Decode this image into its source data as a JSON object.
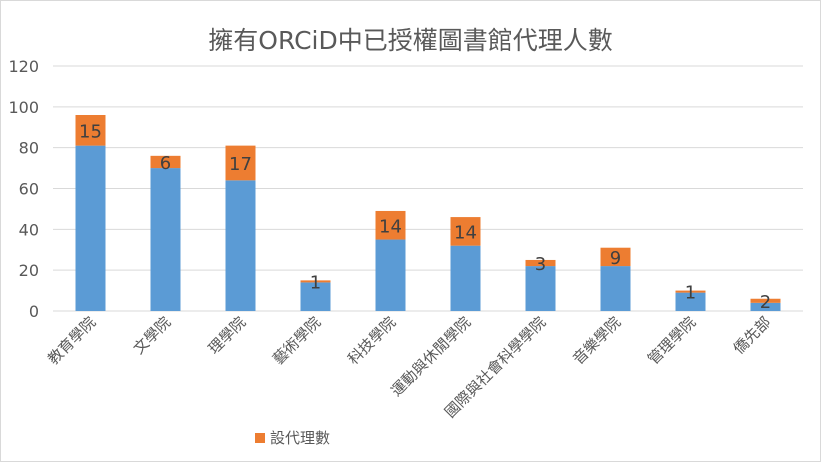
{
  "chart_data": {
    "type": "bar",
    "stacked": true,
    "title": "擁有ORCiD中已授權圖書館代理人數",
    "xlabel": "",
    "ylabel": "",
    "ylim": [
      0,
      120
    ],
    "yticks": [
      0,
      20,
      40,
      60,
      80,
      100,
      120
    ],
    "grid": true,
    "legend_position": "bottom-left",
    "categories": [
      "教育學院",
      "文學院",
      "理學院",
      "藝術學院",
      "科技學院",
      "運動與休閒學院",
      "國際與社會科學學院",
      "音樂學院",
      "管理學院",
      "僑先部"
    ],
    "series": [
      {
        "name": "",
        "color": "#5b9bd5",
        "values": [
          81,
          70,
          64,
          14,
          35,
          32,
          22,
          22,
          9,
          4
        ],
        "show_labels": false
      },
      {
        "name": "設代理數",
        "color": "#ed7d31",
        "values": [
          15,
          6,
          17,
          1,
          14,
          14,
          3,
          9,
          1,
          2
        ],
        "show_labels": true
      }
    ]
  }
}
